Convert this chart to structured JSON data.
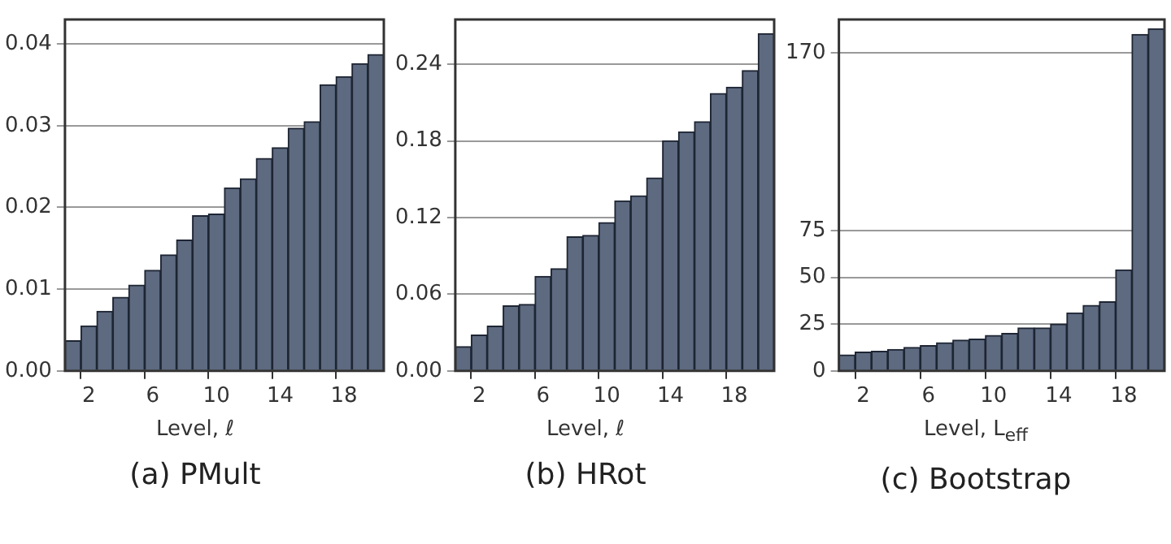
{
  "chart_data": [
    {
      "type": "bar",
      "title": "(a) PMult",
      "xlabel": "Level, ℓ",
      "categories": [
        null,
        "2",
        null,
        null,
        null,
        "6",
        null,
        null,
        null,
        "10",
        null,
        null,
        null,
        "14",
        null,
        null,
        null,
        "18",
        null,
        null
      ],
      "values": [
        0.0037,
        0.0055,
        0.0073,
        0.009,
        0.0105,
        0.0123,
        0.0142,
        0.016,
        0.019,
        0.0192,
        0.0224,
        0.0235,
        0.026,
        0.0273,
        0.0297,
        0.0305,
        0.035,
        0.036,
        0.0376,
        0.0387
      ],
      "color": "#5d6a80",
      "ylim": [
        0,
        0.043
      ],
      "yticks": [
        {
          "value": 0,
          "label": "0.00"
        },
        0.01,
        0.02,
        0.03,
        0.04
      ],
      "grid": "y",
      "legend": false
    },
    {
      "type": "bar",
      "title": "(b) HRot",
      "xlabel": "Level, ℓ",
      "categories": [
        null,
        "2",
        null,
        null,
        null,
        "6",
        null,
        null,
        null,
        "10",
        null,
        null,
        null,
        "14",
        null,
        null,
        null,
        "18",
        null,
        null
      ],
      "values": [
        0.019,
        0.028,
        0.035,
        0.051,
        0.052,
        0.074,
        0.08,
        0.105,
        0.106,
        0.116,
        0.133,
        0.137,
        0.151,
        0.18,
        0.187,
        0.195,
        0.217,
        0.222,
        0.235,
        0.264
      ],
      "color": "#5d6a80",
      "ylim": [
        0,
        0.275
      ],
      "yticks": [
        {
          "value": 0,
          "label": "0.00"
        },
        0.06,
        0.12,
        0.18,
        0.24
      ],
      "grid": "y",
      "legend": false
    },
    {
      "type": "bar",
      "title": "(c) Bootstrap",
      "xlabel": "Level, L$_{eff}$",
      "categories": [
        null,
        "2",
        null,
        null,
        null,
        "6",
        null,
        null,
        null,
        "10",
        null,
        null,
        null,
        "14",
        null,
        null,
        null,
        "18",
        null,
        null
      ],
      "values": [
        8.5,
        10,
        10.5,
        11.5,
        12.5,
        13.5,
        15,
        16.5,
        17,
        19,
        20,
        23,
        23,
        25,
        31,
        35,
        37,
        54,
        180,
        183
      ],
      "color": "#5d6a80",
      "ylim": [
        0,
        188
      ],
      "yticks": [
        0,
        25,
        50,
        75,
        170
      ],
      "grid": "y",
      "legend": false
    }
  ]
}
